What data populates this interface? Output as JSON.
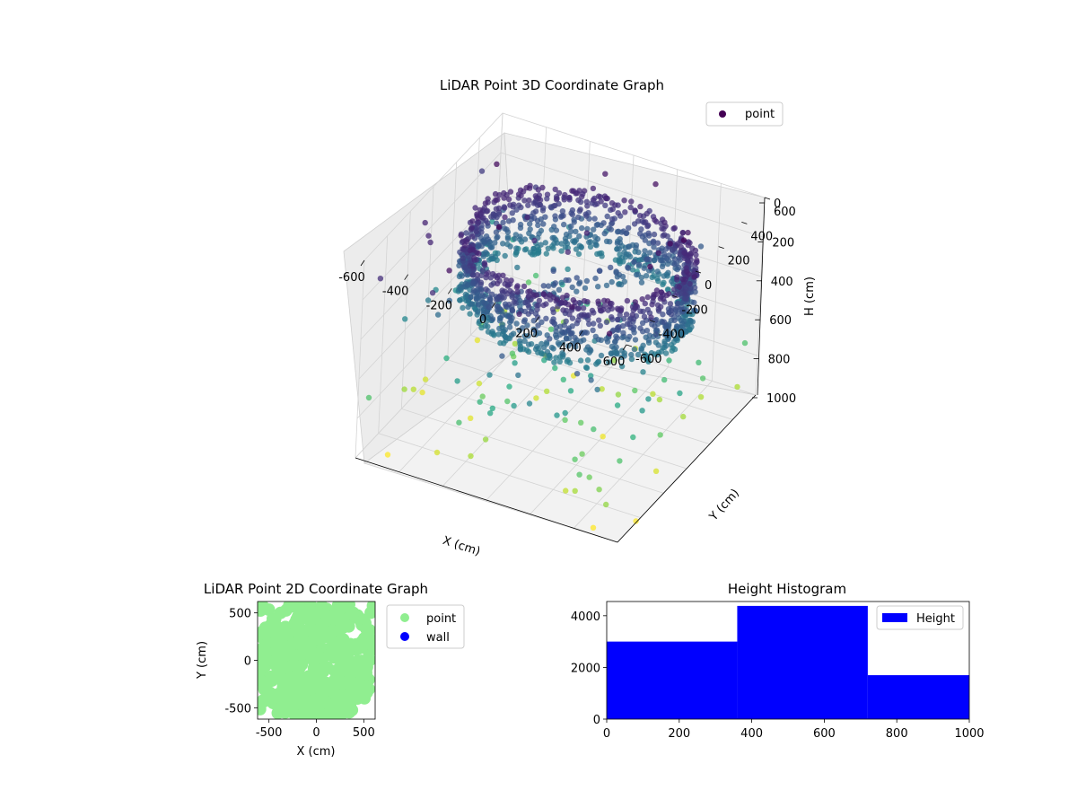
{
  "chart_data": [
    {
      "type": "scatter",
      "title": "LiDAR Point 3D Coordinate Graph",
      "xlabel": "X (cm)",
      "ylabel": "Y (cm)",
      "zlabel": "H (cm)",
      "xlim": [
        -600,
        600
      ],
      "ylim": [
        -600,
        600
      ],
      "zlim": [
        0,
        1000
      ],
      "z_inverted": true,
      "x_ticks": [
        "-600",
        "-400",
        "-200",
        "0",
        "200",
        "400",
        "600"
      ],
      "y_ticks": [
        "-600",
        "-400",
        "-200",
        "0",
        "200",
        "400",
        "600"
      ],
      "z_ticks": [
        "0",
        "200",
        "400",
        "600",
        "800",
        "1000"
      ],
      "colormap": "viridis (colored by height)",
      "legend": {
        "position": "top-right",
        "entries": [
          {
            "name": "point",
            "color": "#440154"
          }
        ]
      },
      "grid": true,
      "series": [
        {
          "name": "point",
          "description": "dense elliptical wall ring of points around the room, 100-400 cm high, plus scattered outliers"
        }
      ]
    },
    {
      "type": "scatter",
      "title": "LiDAR Point 2D Coordinate Graph",
      "xlabel": "X (cm)",
      "ylabel": "Y (cm)",
      "xlim": [
        -620,
        620
      ],
      "ylim": [
        -620,
        620
      ],
      "x_ticks": [
        "-500",
        "0",
        "500"
      ],
      "y_ticks": [
        "-500",
        "0",
        "500"
      ],
      "legend": {
        "position": "outside-right",
        "entries": [
          {
            "name": "point",
            "color": "#90ee90"
          },
          {
            "name": "wall",
            "color": "#0000ff"
          }
        ]
      },
      "series": [
        {
          "name": "point",
          "color": "#90ee90",
          "description": "dense cloud filling approx. -600..600 in X and Y"
        },
        {
          "name": "wall",
          "color": "#0000ff"
        }
      ]
    },
    {
      "type": "bar",
      "title": "Height Histogram",
      "xlim": [
        0,
        1000
      ],
      "ylim": [
        0,
        4550
      ],
      "x_ticks": [
        "0",
        "200",
        "400",
        "600",
        "800",
        "1000"
      ],
      "y_ticks": [
        "0",
        "2000",
        "4000"
      ],
      "bins": [
        {
          "start": 0,
          "end": 360,
          "count": 3000
        },
        {
          "start": 360,
          "end": 720,
          "count": 4380
        },
        {
          "start": 720,
          "end": 1000,
          "count": 1700
        }
      ],
      "legend": {
        "position": "top-right",
        "entries": [
          {
            "name": "Height",
            "color": "#0000ff"
          }
        ]
      },
      "series": [
        {
          "name": "Height",
          "color": "#0000ff"
        }
      ]
    }
  ]
}
